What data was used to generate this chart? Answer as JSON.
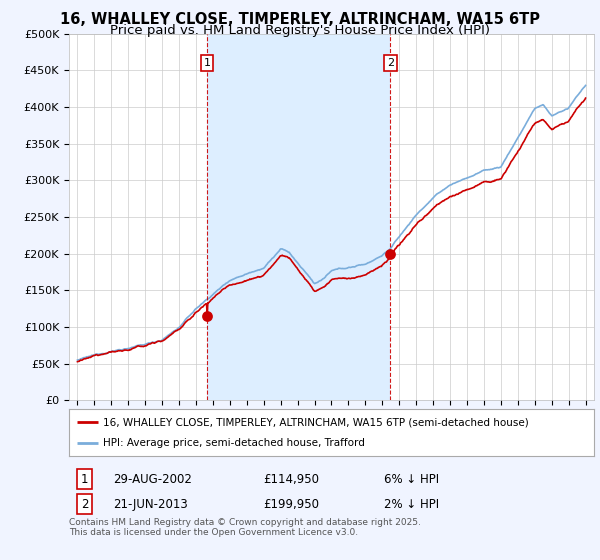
{
  "title_line1": "16, WHALLEY CLOSE, TIMPERLEY, ALTRINCHAM, WA15 6TP",
  "title_line2": "Price paid vs. HM Land Registry's House Price Index (HPI)",
  "ylim": [
    0,
    500000
  ],
  "ytick_values": [
    0,
    50000,
    100000,
    150000,
    200000,
    250000,
    300000,
    350000,
    400000,
    450000,
    500000
  ],
  "ytick_labels": [
    "£0",
    "£50K",
    "£100K",
    "£150K",
    "£200K",
    "£250K",
    "£300K",
    "£350K",
    "£400K",
    "£450K",
    "£500K"
  ],
  "legend_entry1": "16, WHALLEY CLOSE, TIMPERLEY, ALTRINCHAM, WA15 6TP (semi-detached house)",
  "legend_entry2": "HPI: Average price, semi-detached house, Trafford",
  "line1_color": "#cc0000",
  "line2_color": "#7aaddb",
  "shade_color": "#ddeeff",
  "vline_color": "#cc0000",
  "transaction1_x": 2002.65,
  "transaction1_price": 114950,
  "transaction2_x": 2013.47,
  "transaction2_price": 199950,
  "footer": "Contains HM Land Registry data © Crown copyright and database right 2025.\nThis data is licensed under the Open Government Licence v3.0.",
  "bg_color": "#f0f4ff",
  "plot_bg_color": "#ffffff",
  "grid_color": "#cccccc",
  "title_fontsize": 10.5,
  "subtitle_fontsize": 9.5,
  "xstart": 1995,
  "xend": 2025
}
